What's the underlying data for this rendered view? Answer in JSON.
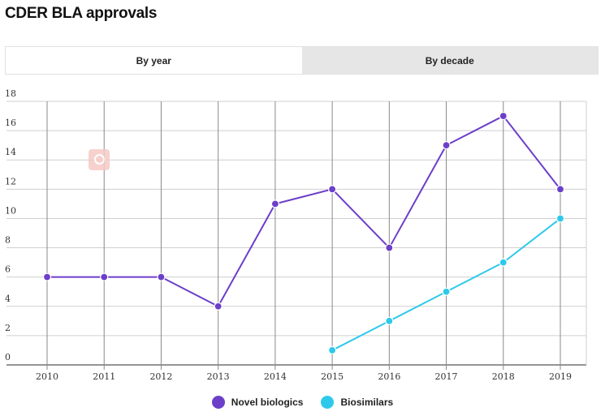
{
  "page": {
    "title": "CDER BLA approvals"
  },
  "tabs": [
    {
      "label": "By year",
      "active": true
    },
    {
      "label": "By decade",
      "active": false
    }
  ],
  "chart_data": {
    "type": "line",
    "title": "",
    "xlabel": "",
    "ylabel": "",
    "x": [
      2010,
      2011,
      2012,
      2013,
      2014,
      2015,
      2016,
      2017,
      2018,
      2019
    ],
    "ylim": [
      0,
      18
    ],
    "yticks": [
      0,
      2,
      4,
      6,
      8,
      10,
      12,
      14,
      16,
      18
    ],
    "grid": true,
    "legend_position": "bottom",
    "series": [
      {
        "name": "Novel biologics",
        "color": "#6c3fc9",
        "values": [
          6,
          6,
          6,
          4,
          11,
          12,
          8,
          15,
          17,
          12
        ]
      },
      {
        "name": "Biosimilars",
        "color": "#2ec9ea",
        "values": [
          null,
          null,
          null,
          null,
          null,
          1,
          3,
          5,
          7,
          10
        ]
      }
    ]
  },
  "legend": [
    {
      "label": "Novel biologics",
      "color": "#6c3fc9"
    },
    {
      "label": "Biosimilars",
      "color": "#2ec9ea"
    }
  ],
  "watermark_icon": "magnifier-icon"
}
